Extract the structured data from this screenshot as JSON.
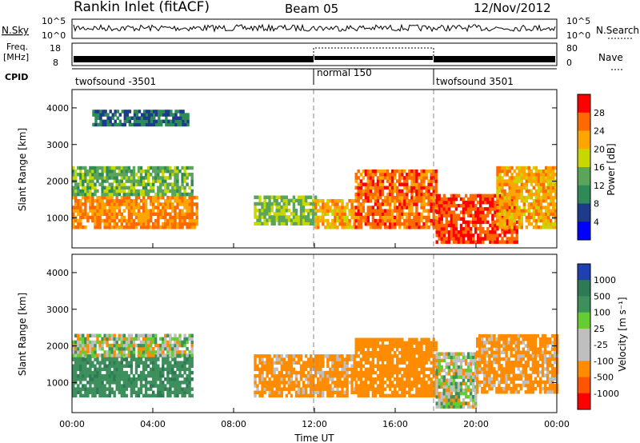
{
  "header": {
    "station": "Rankin Inlet (fitACF)",
    "beam": "Beam 05",
    "date": "12/Nov/2012"
  },
  "strip_labels": {
    "nsky": "N.Sky",
    "nsky_ticks": [
      "10^5",
      "10^0"
    ],
    "nsearch": "N.Search",
    "nsearch_ticks": [
      "10^5",
      "10^0"
    ],
    "freq_line1": "Freq.",
    "freq_line2": "[MHz]",
    "freq_ticks": [
      "18",
      "8"
    ],
    "nave": "Nave",
    "nave_ticks": [
      "80",
      "0"
    ],
    "cpid": "CPID"
  },
  "cpid_segments": [
    {
      "label": "twofsound -3501",
      "start_h": 0,
      "end_h": 12
    },
    {
      "label": "normal 150",
      "start_h": 12,
      "end_h": 18
    },
    {
      "label": "twofsound 3501",
      "start_h": 18,
      "end_h": 24
    }
  ],
  "axes": {
    "x_ticks": [
      "00:00",
      "04:00",
      "08:00",
      "12:00",
      "16:00",
      "20:00",
      "00:00"
    ],
    "x_tick_hours": [
      0,
      4,
      8,
      12,
      16,
      20,
      24
    ],
    "x_range_h": [
      0,
      24
    ],
    "xlabel": "Time UT",
    "ylabel": "Slant Range [km]",
    "y_ticks": [
      "4000",
      "3000",
      "2000",
      "1000"
    ],
    "y_tick_values": [
      4000,
      3000,
      2000,
      1000
    ],
    "y_range_km": [
      180,
      4500
    ],
    "dashed_marker_hours": [
      12,
      18
    ]
  },
  "power_colorbar": {
    "title": "Power [dB]",
    "ticks": [
      "28",
      "24",
      "20",
      "16",
      "12",
      "8",
      "4"
    ],
    "colors": [
      "#ff0000",
      "#ff6a00",
      "#ffa500",
      "#c8d700",
      "#5aa55a",
      "#2e8b57",
      "#1e3a8a",
      "#0000ff"
    ]
  },
  "velocity_colorbar": {
    "title": "Velocity [m s⁻¹]",
    "ticks": [
      "1000",
      "500",
      "100",
      "25",
      "-25",
      "-100",
      "-500",
      "-1000"
    ],
    "colors": [
      "#1e40b0",
      "#2e7a55",
      "#3d8f5c",
      "#66cc33",
      "#bfbfbf",
      "#bfbfbf",
      "#ff8c00",
      "#ff5500",
      "#ff0000"
    ]
  },
  "chart_data": [
    {
      "type": "heatmap",
      "panel": "power",
      "x_range_h": [
        0,
        24
      ],
      "y_range_km": [
        180,
        4500
      ],
      "series": [
        {
          "band_km": [
            700,
            1600
          ],
          "hours": [
            0,
            6.2
          ],
          "level_db": 24
        },
        {
          "band_km": [
            1600,
            2400
          ],
          "hours": [
            0,
            6
          ],
          "level_db": 14
        },
        {
          "band_km": [
            3500,
            3900
          ],
          "hours": [
            1,
            5.8
          ],
          "level_db": 8
        },
        {
          "band_km": [
            800,
            1600
          ],
          "hours": [
            9,
            12
          ],
          "level_db": 16
        },
        {
          "band_km": [
            700,
            1500
          ],
          "hours": [
            12,
            14
          ],
          "level_db": 22
        },
        {
          "band_km": [
            700,
            2300
          ],
          "hours": [
            14,
            18
          ],
          "level_db": 26
        },
        {
          "band_km": [
            300,
            1600
          ],
          "hours": [
            18,
            22
          ],
          "level_db": 28
        },
        {
          "band_km": [
            700,
            2400
          ],
          "hours": [
            21,
            24
          ],
          "level_db": 22
        }
      ]
    },
    {
      "type": "heatmap",
      "panel": "velocity",
      "x_range_h": [
        0,
        24
      ],
      "y_range_km": [
        180,
        4500
      ],
      "series": [
        {
          "band_km": [
            600,
            1700
          ],
          "hours": [
            0,
            6
          ],
          "velocity_ms": 400
        },
        {
          "band_km": [
            1700,
            2300
          ],
          "hours": [
            0,
            6
          ],
          "velocity_ms": 0
        },
        {
          "band_km": [
            600,
            1700
          ],
          "hours": [
            9,
            14
          ],
          "velocity_ms": -200
        },
        {
          "band_km": [
            600,
            2200
          ],
          "hours": [
            14,
            18
          ],
          "velocity_ms": -300
        },
        {
          "band_km": [
            300,
            1800
          ],
          "hours": [
            18,
            20
          ],
          "velocity_ms": 0
        },
        {
          "band_km": [
            700,
            2300
          ],
          "hours": [
            20,
            24
          ],
          "velocity_ms": -200
        }
      ]
    }
  ]
}
